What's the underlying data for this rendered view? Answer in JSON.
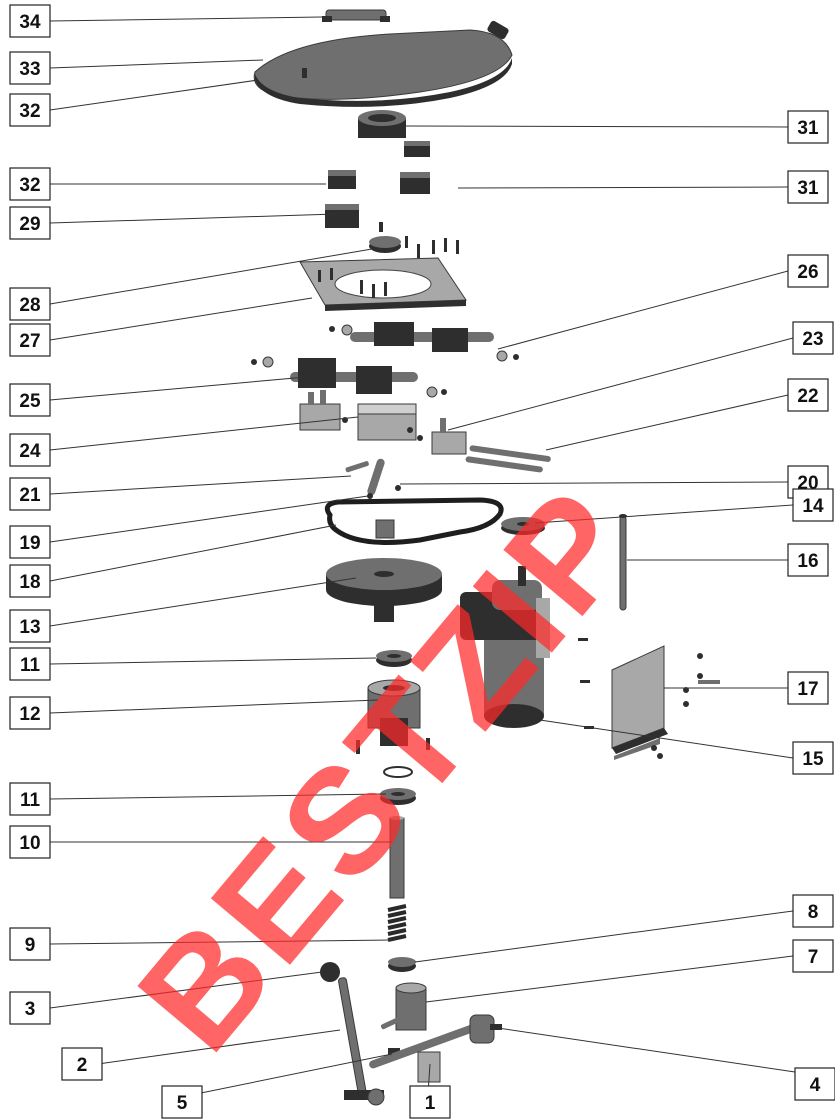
{
  "watermark": "BESTZIP",
  "callouts": {
    "c34": "34",
    "c33": "33",
    "c32a": "32",
    "c31a": "31",
    "c32b": "32",
    "c31b": "31",
    "c29": "29",
    "c28": "28",
    "c26": "26",
    "c27": "27",
    "c23": "23",
    "c25": "25",
    "c22": "22",
    "c24": "24",
    "c20": "20",
    "c21": "21",
    "c14": "14",
    "c19": "19",
    "c18": "18",
    "c16": "16",
    "c13": "13",
    "c17": "17",
    "c11a": "11",
    "c12": "12",
    "c15": "15",
    "c11b": "11",
    "c10": "10",
    "c8": "8",
    "c9": "9",
    "c7": "7",
    "c3": "3",
    "c2": "2",
    "c4": "4",
    "c5": "5",
    "c1": "1"
  }
}
